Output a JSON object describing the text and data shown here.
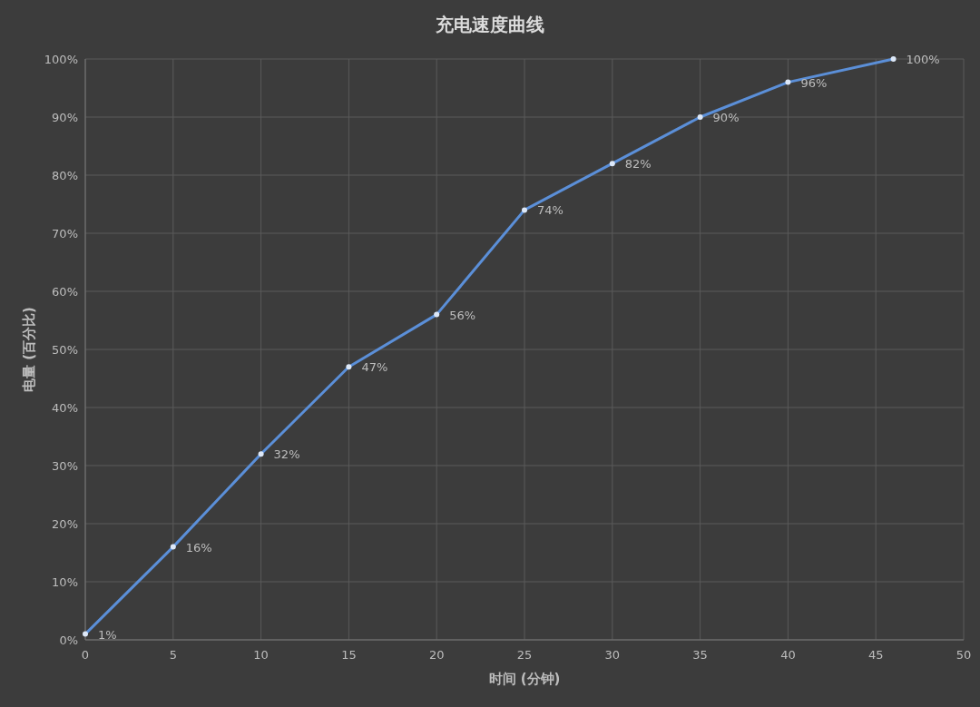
{
  "chart_data": {
    "type": "line",
    "title": "充电速度曲线",
    "xlabel": "时间 (分钟)",
    "ylabel": "电量 (百分比)",
    "x": [
      0,
      5,
      10,
      15,
      20,
      25,
      30,
      35,
      40,
      46
    ],
    "series": [
      {
        "color": "#5b8fd8",
        "values": [
          1,
          16,
          32,
          47,
          56,
          74,
          82,
          90,
          96,
          100
        ],
        "value_labels": [
          "1%",
          "16%",
          "32%",
          "47%",
          "56%",
          "74%",
          "82%",
          "90%",
          "96%",
          "100%"
        ]
      }
    ],
    "xlim": [
      0,
      50
    ],
    "xticks": [
      0,
      5,
      10,
      15,
      20,
      25,
      30,
      35,
      40,
      45,
      50
    ],
    "ylim": [
      0,
      100
    ],
    "yticks": [
      {
        "value": 0,
        "label": "0%"
      },
      {
        "value": 10,
        "label": "10%"
      },
      {
        "value": 20,
        "label": "20%"
      },
      {
        "value": 30,
        "label": "30%"
      },
      {
        "value": 40,
        "label": "40%"
      },
      {
        "value": 50,
        "label": "50%"
      },
      {
        "value": 60,
        "label": "60%"
      },
      {
        "value": 70,
        "label": "70%"
      },
      {
        "value": 80,
        "label": "80%"
      },
      {
        "value": 90,
        "label": "90%"
      },
      {
        "value": 100,
        "label": "100%"
      }
    ],
    "grid": true,
    "marker": "circle",
    "line_style": "solid"
  }
}
